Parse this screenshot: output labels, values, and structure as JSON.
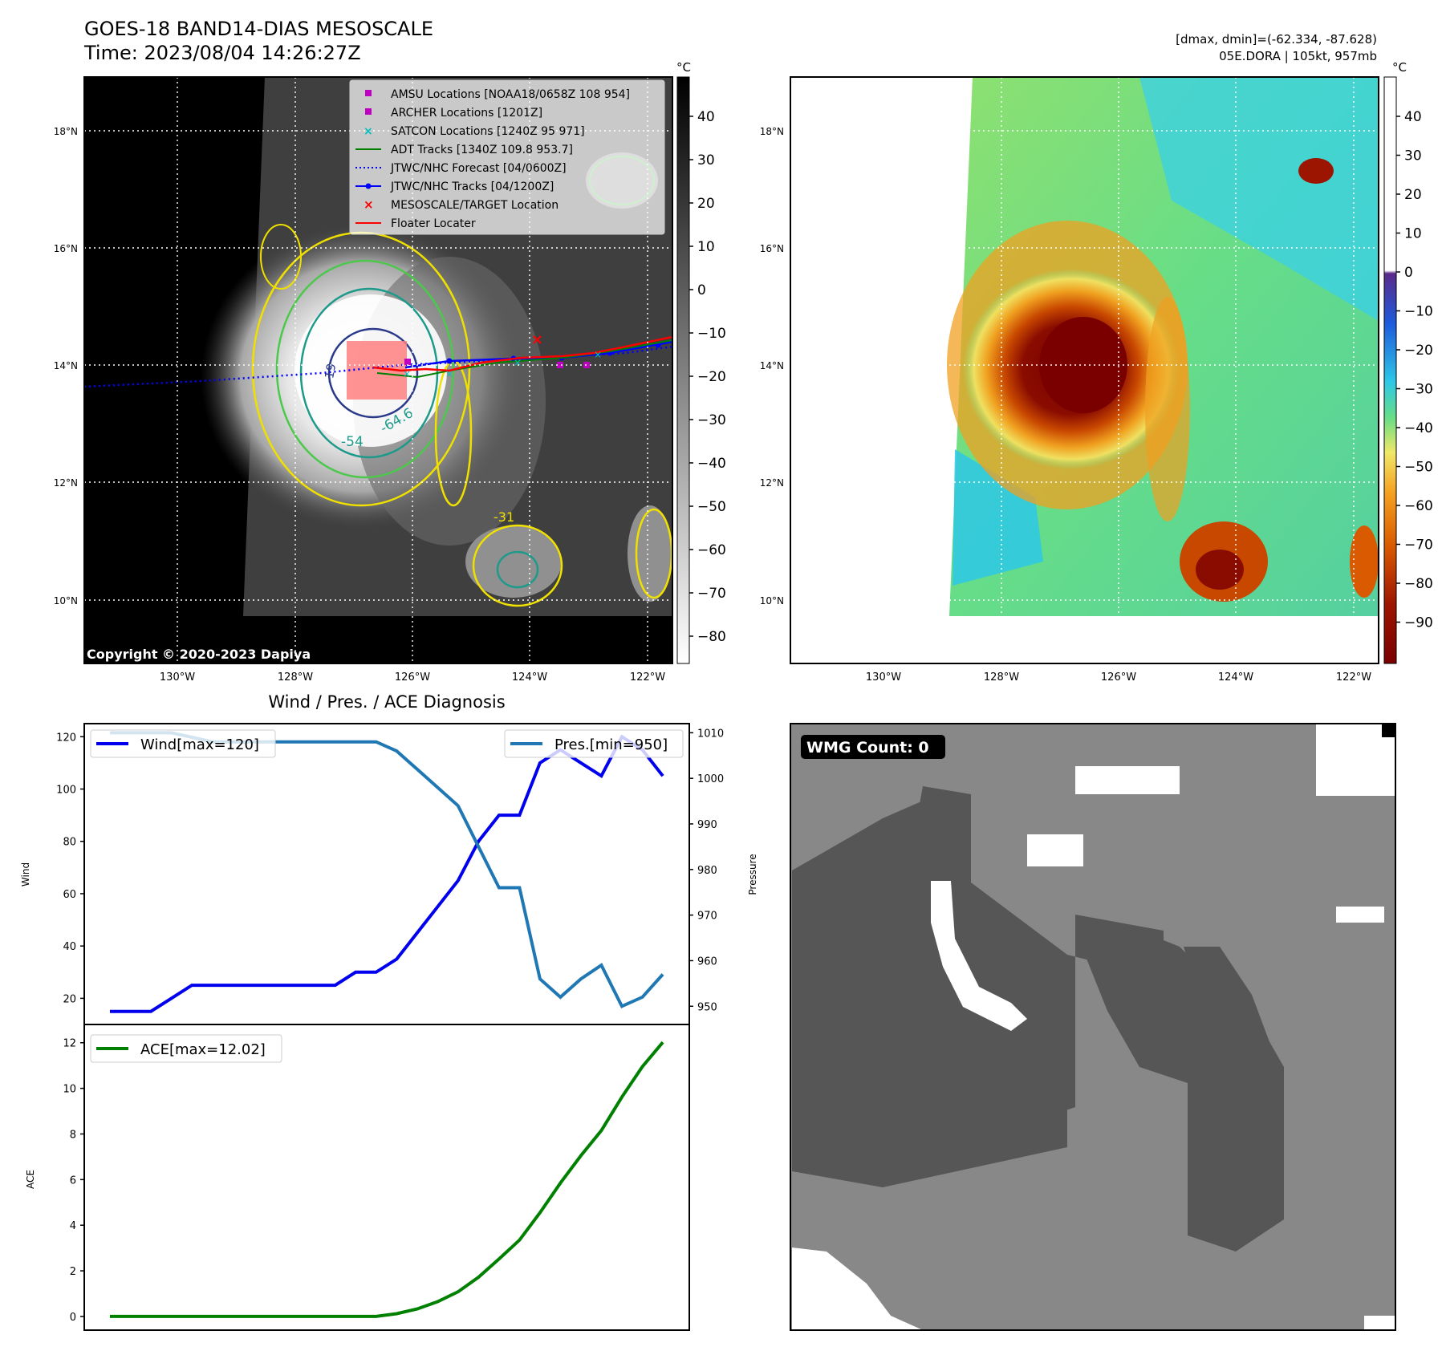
{
  "header": {
    "title_line1": "GOES-18 BAND14-DIAS MESOSCALE",
    "title_line2": "Time: 2023/08/04 14:26:27Z",
    "stats_line1": "[dmax, dmin]=(-62.334, -87.628)",
    "stats_line2": "05E.DORA | 105kt, 957mb"
  },
  "map_axes": {
    "lon_labels": [
      "130°W",
      "128°W",
      "126°W",
      "124°W",
      "122°W"
    ],
    "lat_labels": [
      "18°N",
      "16°N",
      "14°N",
      "12°N",
      "10°N"
    ]
  },
  "ir_colorbar": {
    "unit": "°C",
    "ticks": [
      "40",
      "30",
      "20",
      "10",
      "0",
      "−10",
      "−20",
      "−30",
      "−40",
      "−50",
      "−60",
      "−70",
      "−80"
    ]
  },
  "sst_colorbar": {
    "unit": "°C",
    "ticks": [
      "40",
      "30",
      "20",
      "10",
      "0",
      "−10",
      "−20",
      "−30",
      "−40",
      "−50",
      "−60",
      "−70",
      "−80",
      "−90"
    ]
  },
  "legend": [
    {
      "label": "AMSU Locations [NOAA18/0658Z 108 954]",
      "marker": "square",
      "color": "#c000c0"
    },
    {
      "label": "ARCHER Locations [1201Z]",
      "marker": "square",
      "color": "#c000c0"
    },
    {
      "label": "SATCON Locations [1240Z 95 971]",
      "marker": "x",
      "color": "#00bfbf"
    },
    {
      "label": "ADT Tracks [1340Z 109.8 953.7]",
      "marker": "line",
      "color": "#008000"
    },
    {
      "label": "JTWC/NHC Forecast [04/0600Z]",
      "marker": "dotted",
      "color": "#0000ff"
    },
    {
      "label": "JTWC/NHC Tracks [04/1200Z]",
      "marker": "line-dot",
      "color": "#0000ff"
    },
    {
      "label": "MESOSCALE/TARGET Location",
      "marker": "x",
      "color": "#ff0000"
    },
    {
      "label": "Floater Locater",
      "marker": "line",
      "color": "#ff0000"
    }
  ],
  "contour_labels": [
    "-54",
    "-64.6",
    "-31",
    "-19"
  ],
  "copyright": "Copyright © 2020-2023 Dapiya",
  "wmg": {
    "label": "WMG Count: 0"
  },
  "chart_data": [
    {
      "type": "line",
      "title": "Wind / Pres. / ACE Diagnosis",
      "ylabel": "Wind",
      "ylabel_right": "Pressure",
      "ylim": [
        10,
        125
      ],
      "ylim_right": [
        946,
        1012
      ],
      "yticks": [
        20,
        40,
        60,
        80,
        100,
        120
      ],
      "yticks_right": [
        950,
        960,
        970,
        980,
        990,
        1000,
        1010
      ],
      "x": [
        0,
        1,
        2,
        3,
        4,
        5,
        6,
        7,
        8,
        9,
        10,
        11,
        12,
        13,
        14,
        15,
        16,
        17,
        18,
        19,
        20,
        21,
        22,
        23,
        24,
        25,
        26,
        27
      ],
      "series": [
        {
          "name": "Wind[max=120]",
          "axis": "left",
          "color": "#0000ee",
          "values": [
            15,
            15,
            15,
            20,
            25,
            25,
            25,
            25,
            25,
            25,
            25,
            25,
            30,
            30,
            35,
            45,
            55,
            65,
            80,
            90,
            90,
            110,
            115,
            110,
            105,
            120,
            115,
            105
          ]
        },
        {
          "name": "Pres.[min=950]",
          "axis": "right",
          "color": "#1f77b4",
          "values": [
            1010,
            1010,
            1010,
            1010,
            1009,
            1008,
            1008,
            1008,
            1008,
            1008,
            1008,
            1008,
            1008,
            1008,
            1006,
            1002,
            998,
            994,
            985,
            976,
            976,
            956,
            952,
            956,
            959,
            950,
            952,
            957
          ]
        }
      ]
    },
    {
      "type": "line",
      "ylabel": "ACE",
      "ylim": [
        -0.6,
        12.8
      ],
      "yticks": [
        0,
        2,
        4,
        6,
        8,
        10,
        12
      ],
      "x": [
        0,
        1,
        2,
        3,
        4,
        5,
        6,
        7,
        8,
        9,
        10,
        11,
        12,
        13,
        14,
        15,
        16,
        17,
        18,
        19,
        20,
        21,
        22,
        23,
        24,
        25,
        26,
        27
      ],
      "series": [
        {
          "name": "ACE[max=12.02]",
          "color": "#008000",
          "values": [
            0,
            0,
            0,
            0,
            0,
            0,
            0,
            0,
            0,
            0,
            0,
            0,
            0,
            0,
            0.12,
            0.33,
            0.65,
            1.08,
            1.72,
            2.52,
            3.35,
            4.55,
            5.85,
            7.05,
            8.15,
            9.62,
            10.95,
            12.02
          ]
        }
      ]
    }
  ]
}
